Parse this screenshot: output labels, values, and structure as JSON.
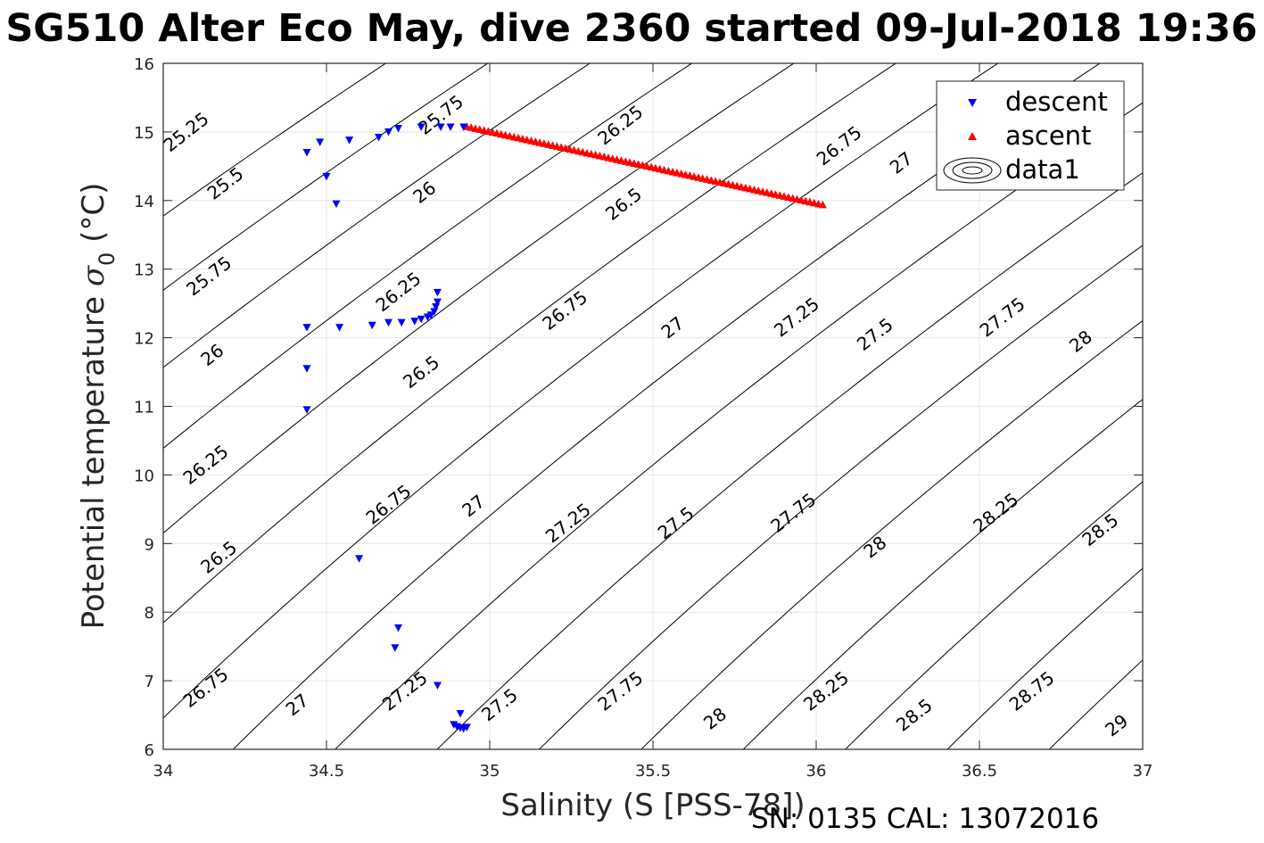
{
  "title": "SG510 Alter Eco May, dive 2360 started 09-Jul-2018 19:36",
  "footer": "SN: 0135  CAL: 13072016",
  "colors": {
    "descent": "#0000ff",
    "ascent": "#ff0000",
    "contour": "#000000",
    "grid": "#e6e6e6"
  },
  "chart_data": {
    "type": "scatter",
    "xlabel": "Salinity (S [PSS-78])",
    "ylabel_main": "Potential temperature ",
    "ylabel_sigma": "σ",
    "ylabel_sub": "0",
    "ylabel_unit": " (°C)",
    "xlim": [
      34,
      37
    ],
    "ylim": [
      6,
      16
    ],
    "xticks": [
      34,
      34.5,
      35,
      35.5,
      36,
      36.5,
      37
    ],
    "yticks": [
      6,
      7,
      8,
      9,
      10,
      11,
      12,
      13,
      14,
      15,
      16
    ],
    "grid": true,
    "legend_position": "top-right",
    "legend": [
      "descent",
      "ascent",
      "data1"
    ],
    "series": [
      {
        "name": "descent",
        "marker": "triangle-down",
        "points": [
          [
            34.44,
            14.7
          ],
          [
            34.48,
            14.85
          ],
          [
            34.5,
            14.35
          ],
          [
            34.53,
            13.95
          ],
          [
            34.57,
            14.88
          ],
          [
            34.66,
            14.92
          ],
          [
            34.69,
            15.0
          ],
          [
            34.72,
            15.05
          ],
          [
            34.79,
            15.07
          ],
          [
            34.85,
            15.07
          ],
          [
            34.88,
            15.07
          ],
          [
            34.92,
            15.07
          ],
          [
            34.44,
            12.15
          ],
          [
            34.54,
            12.15
          ],
          [
            34.64,
            12.18
          ],
          [
            34.69,
            12.22
          ],
          [
            34.73,
            12.22
          ],
          [
            34.77,
            12.24
          ],
          [
            34.79,
            12.27
          ],
          [
            34.81,
            12.3
          ],
          [
            34.82,
            12.33
          ],
          [
            34.83,
            12.38
          ],
          [
            34.835,
            12.45
          ],
          [
            34.84,
            12.52
          ],
          [
            34.84,
            12.66
          ],
          [
            34.44,
            11.55
          ],
          [
            34.44,
            10.95
          ],
          [
            34.6,
            8.78
          ],
          [
            34.72,
            7.77
          ],
          [
            34.71,
            7.48
          ],
          [
            34.84,
            6.93
          ],
          [
            34.91,
            6.52
          ],
          [
            34.89,
            6.36
          ],
          [
            34.9,
            6.33
          ],
          [
            34.91,
            6.31
          ],
          [
            34.92,
            6.3
          ],
          [
            34.93,
            6.32
          ]
        ]
      },
      {
        "name": "ascent",
        "marker": "triangle-up",
        "line_from": [
          34.93,
          15.08
        ],
        "line_to": [
          36.02,
          13.94
        ],
        "point_count": 84
      }
    ],
    "contours": [
      {
        "level": "25.25",
        "label_at": [
          34.07,
          15.0
        ]
      },
      {
        "level": "25.5",
        "label_at": [
          34.19,
          14.25
        ]
      },
      {
        "level": "25.75",
        "label_at": [
          34.85,
          15.25
        ]
      },
      {
        "level": "25.75",
        "label_at": [
          34.14,
          12.9
        ]
      },
      {
        "level": "26",
        "label_at": [
          34.8,
          14.12
        ]
      },
      {
        "level": "26",
        "label_at": [
          34.15,
          11.75
        ]
      },
      {
        "level": "26.25",
        "label_at": [
          35.4,
          15.1
        ]
      },
      {
        "level": "26.25",
        "label_at": [
          34.72,
          12.67
        ]
      },
      {
        "level": "26.25",
        "label_at": [
          34.13,
          10.15
        ]
      },
      {
        "level": "26.5",
        "label_at": [
          35.41,
          13.95
        ]
      },
      {
        "level": "26.5",
        "label_at": [
          34.79,
          11.5
        ]
      },
      {
        "level": "26.5",
        "label_at": [
          34.17,
          8.8
        ]
      },
      {
        "level": "26.75",
        "label_at": [
          36.07,
          14.8
        ]
      },
      {
        "level": "26.75",
        "label_at": [
          35.23,
          12.4
        ]
      },
      {
        "level": "26.75",
        "label_at": [
          34.69,
          9.57
        ]
      },
      {
        "level": "26.75",
        "label_at": [
          34.13,
          6.9
        ]
      },
      {
        "level": "27",
        "label_at": [
          36.26,
          14.55
        ]
      },
      {
        "level": "27",
        "label_at": [
          35.56,
          12.15
        ]
      },
      {
        "level": "27",
        "label_at": [
          34.95,
          9.55
        ]
      },
      {
        "level": "27",
        "label_at": [
          34.41,
          6.65
        ]
      },
      {
        "level": "27.25",
        "label_at": [
          35.94,
          12.3
        ]
      },
      {
        "level": "27.25",
        "label_at": [
          35.24,
          9.3
        ]
      },
      {
        "level": "27.25",
        "label_at": [
          34.74,
          6.85
        ]
      },
      {
        "level": "27.5",
        "label_at": [
          36.18,
          12.05
        ]
      },
      {
        "level": "27.5",
        "label_at": [
          35.57,
          9.3
        ]
      },
      {
        "level": "27.5",
        "label_at": [
          35.03,
          6.65
        ]
      },
      {
        "level": "27.75",
        "label_at": [
          36.57,
          12.3
        ]
      },
      {
        "level": "27.75",
        "label_at": [
          35.93,
          9.45
        ]
      },
      {
        "level": "27.75",
        "label_at": [
          35.4,
          6.85
        ]
      },
      {
        "level": "28",
        "label_at": [
          36.81,
          11.95
        ]
      },
      {
        "level": "28",
        "label_at": [
          36.18,
          8.95
        ]
      },
      {
        "level": "28",
        "label_at": [
          35.69,
          6.45
        ]
      },
      {
        "level": "28.25",
        "label_at": [
          36.55,
          9.45
        ]
      },
      {
        "level": "28.25",
        "label_at": [
          36.03,
          6.85
        ]
      },
      {
        "level": "28.5",
        "label_at": [
          36.87,
          9.2
        ]
      },
      {
        "level": "28.5",
        "label_at": [
          36.3,
          6.5
        ]
      },
      {
        "level": "28.75",
        "label_at": [
          36.66,
          6.85
        ]
      },
      {
        "level": "29",
        "label_at": [
          36.92,
          6.35
        ]
      }
    ]
  }
}
